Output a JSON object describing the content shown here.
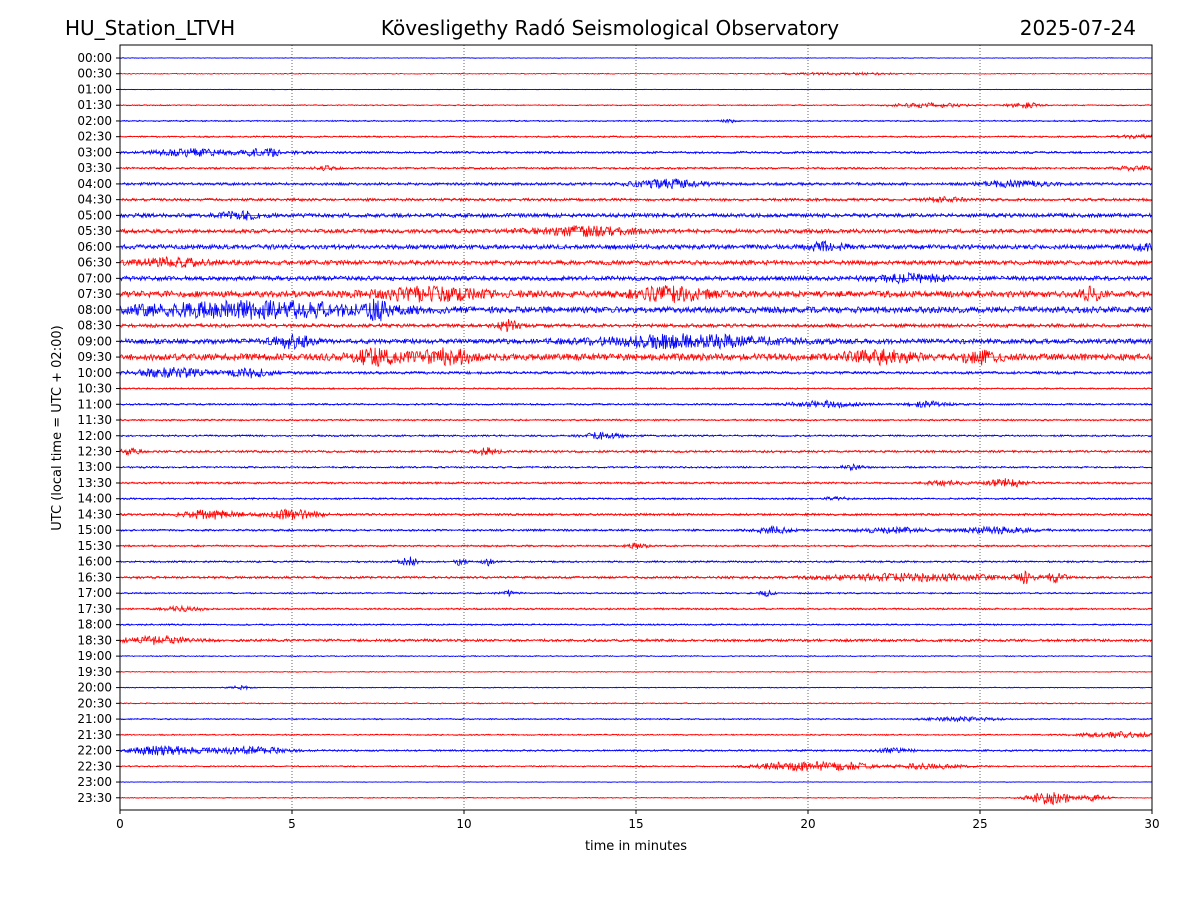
{
  "header": {
    "station": "HU_Station_LTVH",
    "title": "Kövesligethy Radó Seismological Observatory",
    "date": "2025-07-24"
  },
  "chart_data": {
    "type": "line",
    "title": "Kövesligethy Radó Seismological Observatory",
    "xlabel": "time in minutes",
    "ylabel": "UTC (local time = UTC + 02:00)",
    "xlim": [
      0,
      30
    ],
    "xticks": [
      0,
      5,
      10,
      15,
      20,
      25,
      30
    ],
    "grid": "vertical dotted lines at x ticks",
    "trace_colors": [
      "#0000ff",
      "#ff0000"
    ],
    "rows": [
      {
        "label": "00:00",
        "noise": 0.15,
        "events": []
      },
      {
        "label": "00:30",
        "noise": 0.2,
        "events": [
          {
            "t": 21,
            "amp": 0.5,
            "dur": 3
          }
        ]
      },
      {
        "label": "01:00",
        "noise": 0.12,
        "events": []
      },
      {
        "label": "01:30",
        "noise": 0.25,
        "events": [
          {
            "t": 23.5,
            "amp": 1.0,
            "dur": 2
          },
          {
            "t": 26.3,
            "amp": 1.2,
            "dur": 0.8
          }
        ]
      },
      {
        "label": "02:00",
        "noise": 0.3,
        "events": [
          {
            "t": 17.7,
            "amp": 0.8,
            "dur": 0.3
          }
        ]
      },
      {
        "label": "02:30",
        "noise": 0.35,
        "events": [
          {
            "t": 29.5,
            "amp": 0.8,
            "dur": 1
          }
        ]
      },
      {
        "label": "03:00",
        "noise": 0.5,
        "events": [
          {
            "t": 2,
            "amp": 1.5,
            "dur": 2
          },
          {
            "t": 4.2,
            "amp": 1.5,
            "dur": 1.5
          }
        ]
      },
      {
        "label": "03:30",
        "noise": 0.45,
        "events": [
          {
            "t": 6,
            "amp": 0.8,
            "dur": 0.5
          },
          {
            "t": 29.5,
            "amp": 0.8,
            "dur": 1
          }
        ]
      },
      {
        "label": "04:00",
        "noise": 0.6,
        "events": [
          {
            "t": 16,
            "amp": 1.8,
            "dur": 2
          },
          {
            "t": 26,
            "amp": 1.2,
            "dur": 2
          }
        ]
      },
      {
        "label": "04:30",
        "noise": 0.6,
        "events": [
          {
            "t": 24,
            "amp": 1.0,
            "dur": 1
          }
        ]
      },
      {
        "label": "05:00",
        "noise": 0.9,
        "events": [
          {
            "t": 3.5,
            "amp": 1.6,
            "dur": 1
          }
        ]
      },
      {
        "label": "05:30",
        "noise": 0.9,
        "events": [
          {
            "t": 13.5,
            "amp": 1.8,
            "dur": 3
          }
        ]
      },
      {
        "label": "06:00",
        "noise": 1.0,
        "events": [
          {
            "t": 20.5,
            "amp": 1.6,
            "dur": 1
          },
          {
            "t": 29.8,
            "amp": 1.6,
            "dur": 0.5
          }
        ]
      },
      {
        "label": "06:30",
        "noise": 1.0,
        "events": [
          {
            "t": 1.5,
            "amp": 1.6,
            "dur": 2
          }
        ]
      },
      {
        "label": "07:00",
        "noise": 1.0,
        "events": [
          {
            "t": 23,
            "amp": 1.6,
            "dur": 2
          }
        ]
      },
      {
        "label": "07:30",
        "noise": 1.4,
        "events": [
          {
            "t": 9,
            "amp": 2.6,
            "dur": 3
          },
          {
            "t": 16,
            "amp": 2.8,
            "dur": 2
          },
          {
            "t": 28.2,
            "amp": 3.0,
            "dur": 0.5
          }
        ]
      },
      {
        "label": "08:00",
        "noise": 1.4,
        "events": [
          {
            "t": 4,
            "amp": 3.2,
            "dur": 7
          },
          {
            "t": 7.5,
            "amp": 3.2,
            "dur": 0.5
          }
        ]
      },
      {
        "label": "08:30",
        "noise": 0.8,
        "events": [
          {
            "t": 11.3,
            "amp": 2.2,
            "dur": 0.5
          }
        ]
      },
      {
        "label": "09:00",
        "noise": 1.1,
        "events": [
          {
            "t": 5,
            "amp": 2.6,
            "dur": 1
          },
          {
            "t": 16.5,
            "amp": 2.6,
            "dur": 5
          }
        ]
      },
      {
        "label": "09:30",
        "noise": 1.5,
        "events": [
          {
            "t": 7.5,
            "amp": 3.0,
            "dur": 1.5
          },
          {
            "t": 9.5,
            "amp": 3.0,
            "dur": 1.5
          },
          {
            "t": 22,
            "amp": 2.4,
            "dur": 2
          },
          {
            "t": 25,
            "amp": 2.4,
            "dur": 1
          }
        ]
      },
      {
        "label": "10:00",
        "noise": 0.6,
        "events": [
          {
            "t": 1.5,
            "amp": 2.0,
            "dur": 2
          },
          {
            "t": 3.8,
            "amp": 2.0,
            "dur": 1
          }
        ]
      },
      {
        "label": "10:30",
        "noise": 0.35,
        "events": []
      },
      {
        "label": "11:00",
        "noise": 0.4,
        "events": [
          {
            "t": 20.5,
            "amp": 1.4,
            "dur": 2
          },
          {
            "t": 23.5,
            "amp": 1.2,
            "dur": 1
          }
        ]
      },
      {
        "label": "11:30",
        "noise": 0.4,
        "events": []
      },
      {
        "label": "12:00",
        "noise": 0.4,
        "events": [
          {
            "t": 14,
            "amp": 1.4,
            "dur": 1
          }
        ]
      },
      {
        "label": "12:30",
        "noise": 0.5,
        "events": [
          {
            "t": 0.3,
            "amp": 1.4,
            "dur": 0.5
          },
          {
            "t": 10.7,
            "amp": 1.6,
            "dur": 0.5
          }
        ]
      },
      {
        "label": "13:00",
        "noise": 0.4,
        "events": [
          {
            "t": 21.3,
            "amp": 1.0,
            "dur": 0.5
          }
        ]
      },
      {
        "label": "13:30",
        "noise": 0.45,
        "events": [
          {
            "t": 25.8,
            "amp": 1.8,
            "dur": 1
          },
          {
            "t": 24,
            "amp": 1.0,
            "dur": 1
          }
        ]
      },
      {
        "label": "14:00",
        "noise": 0.4,
        "events": [
          {
            "t": 20.8,
            "amp": 1.0,
            "dur": 0.5
          }
        ]
      },
      {
        "label": "14:30",
        "noise": 0.5,
        "events": [
          {
            "t": 2.6,
            "amp": 2.0,
            "dur": 1.5
          },
          {
            "t": 5,
            "amp": 2.0,
            "dur": 1.5
          }
        ]
      },
      {
        "label": "15:00",
        "noise": 0.45,
        "events": [
          {
            "t": 19,
            "amp": 1.4,
            "dur": 1
          },
          {
            "t": 22.5,
            "amp": 1.2,
            "dur": 2
          },
          {
            "t": 25.5,
            "amp": 1.4,
            "dur": 2
          }
        ]
      },
      {
        "label": "15:30",
        "noise": 0.4,
        "events": [
          {
            "t": 15,
            "amp": 1.2,
            "dur": 0.5
          }
        ]
      },
      {
        "label": "16:00",
        "noise": 0.4,
        "events": [
          {
            "t": 8.4,
            "amp": 2.0,
            "dur": 0.4
          },
          {
            "t": 9.9,
            "amp": 2.2,
            "dur": 0.2
          },
          {
            "t": 10.7,
            "amp": 1.6,
            "dur": 0.2
          }
        ]
      },
      {
        "label": "16:30",
        "noise": 0.5,
        "events": [
          {
            "t": 23,
            "amp": 1.6,
            "dur": 5
          },
          {
            "t": 26.3,
            "amp": 2.4,
            "dur": 0.4
          },
          {
            "t": 27.2,
            "amp": 1.8,
            "dur": 0.5
          }
        ]
      },
      {
        "label": "17:00",
        "noise": 0.35,
        "events": [
          {
            "t": 11.3,
            "amp": 1.4,
            "dur": 0.4
          },
          {
            "t": 18.8,
            "amp": 1.2,
            "dur": 0.3
          }
        ]
      },
      {
        "label": "17:30",
        "noise": 0.4,
        "events": [
          {
            "t": 1.8,
            "amp": 1.0,
            "dur": 1
          }
        ]
      },
      {
        "label": "18:00",
        "noise": 0.35,
        "events": []
      },
      {
        "label": "18:30",
        "noise": 0.6,
        "events": [
          {
            "t": 1,
            "amp": 1.6,
            "dur": 2
          }
        ]
      },
      {
        "label": "19:00",
        "noise": 0.25,
        "events": []
      },
      {
        "label": "19:30",
        "noise": 0.2,
        "events": []
      },
      {
        "label": "20:00",
        "noise": 0.2,
        "events": [
          {
            "t": 3.5,
            "amp": 0.8,
            "dur": 0.5
          }
        ]
      },
      {
        "label": "20:30",
        "noise": 0.25,
        "events": []
      },
      {
        "label": "21:00",
        "noise": 0.3,
        "events": [
          {
            "t": 24.5,
            "amp": 0.8,
            "dur": 2
          }
        ]
      },
      {
        "label": "21:30",
        "noise": 0.3,
        "events": [
          {
            "t": 29,
            "amp": 1.2,
            "dur": 2
          }
        ]
      },
      {
        "label": "22:00",
        "noise": 0.4,
        "events": [
          {
            "t": 1.3,
            "amp": 2.0,
            "dur": 2
          },
          {
            "t": 3.8,
            "amp": 1.6,
            "dur": 2
          },
          {
            "t": 22.5,
            "amp": 1.0,
            "dur": 1
          }
        ]
      },
      {
        "label": "22:30",
        "noise": 0.3,
        "events": [
          {
            "t": 19.5,
            "amp": 1.8,
            "dur": 2
          },
          {
            "t": 21,
            "amp": 1.8,
            "dur": 1.5
          },
          {
            "t": 23.5,
            "amp": 1.2,
            "dur": 2
          }
        ]
      },
      {
        "label": "23:00",
        "noise": 0.15,
        "events": []
      },
      {
        "label": "23:30",
        "noise": 0.2,
        "events": [
          {
            "t": 27.1,
            "amp": 3.2,
            "dur": 1.2
          },
          {
            "t": 28.4,
            "amp": 1.4,
            "dur": 0.6
          }
        ]
      }
    ]
  }
}
